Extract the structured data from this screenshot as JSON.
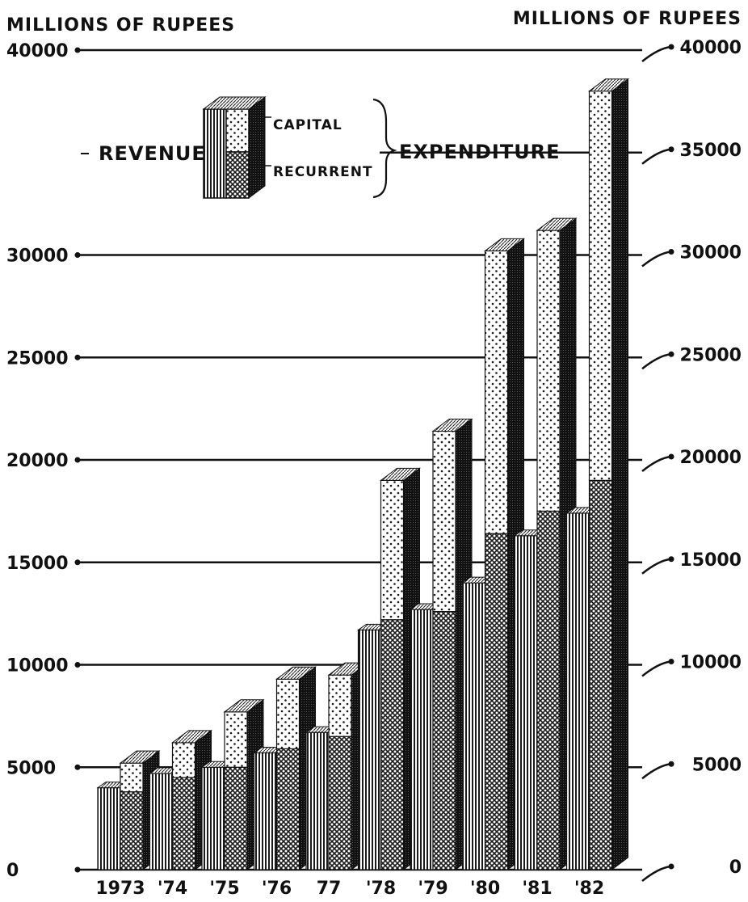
{
  "chart_data": {
    "type": "bar",
    "ylabel_left": "MILLIONS OF RUPEES",
    "ylabel_right": "MILLIONS OF RUPEES",
    "ylim": [
      0,
      40000
    ],
    "yticks": [
      0,
      5000,
      10000,
      15000,
      20000,
      25000,
      30000,
      35000,
      40000
    ],
    "ytick_labels_left": [
      "0",
      "5000",
      "10000",
      "15000",
      "20000",
      "25000",
      "30000",
      "35000",
      "40000"
    ],
    "ytick_labels_right": [
      "0",
      "5000",
      "10000",
      "15000",
      "20000",
      "25000",
      "30000",
      "35000",
      "40000"
    ],
    "categories": [
      "1973",
      "'74",
      "'75",
      "'76",
      "77",
      "'78",
      "'79",
      "'80",
      "'81",
      "'82"
    ],
    "series": [
      {
        "name": "REVENUE",
        "values": [
          4000,
          4700,
          5000,
          5700,
          6700,
          11700,
          12700,
          14000,
          16300,
          17400
        ]
      },
      {
        "name": "RECURRENT",
        "values": [
          3800,
          4500,
          5000,
          5900,
          6500,
          12200,
          12600,
          16400,
          17500,
          19000
        ]
      },
      {
        "name": "CAPITAL",
        "values": [
          1400,
          1700,
          2700,
          3400,
          3000,
          6800,
          8800,
          13800,
          13700,
          19000
        ]
      }
    ],
    "legend": {
      "revenue": "REVENUE",
      "capital": "CAPITAL",
      "recurrent": "RECURRENT",
      "expenditure": "EXPENDITURE",
      "position": "top-left"
    },
    "grid": true
  }
}
